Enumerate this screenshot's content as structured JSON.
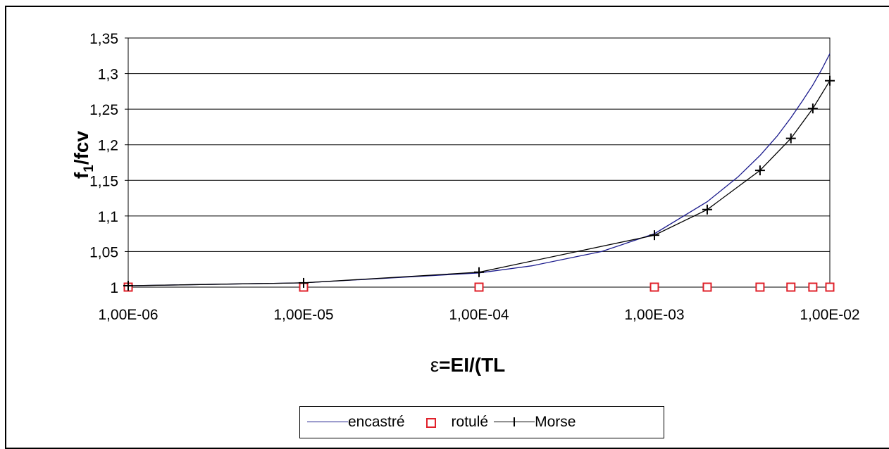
{
  "chart_data": {
    "type": "line",
    "xscale": "log",
    "xlim": [
      1e-06,
      0.01
    ],
    "ylim": [
      1,
      1.35
    ],
    "ylabel": "f1/fcv",
    "ylabel_main": "f",
    "ylabel_sub": "1",
    "ylabel_rest": "/fcv",
    "xlabel": "ε=EI/(TL",
    "xlabel_symbol": "ε",
    "xlabel_rest": "=EI/(TL",
    "x_ticks": [
      1e-06,
      1e-05,
      0.0001,
      0.001,
      0.01
    ],
    "x_tick_labels": [
      "1,00E-06",
      "1,00E-05",
      "1,00E-04",
      "1,00E-03",
      "1,00E-02"
    ],
    "y_ticks": [
      1,
      1.05,
      1.1,
      1.15,
      1.2,
      1.25,
      1.3,
      1.35
    ],
    "y_tick_labels": [
      "1",
      "1,05",
      "1,1",
      "1,15",
      "1,2",
      "1,25",
      "1,3",
      "1,35"
    ],
    "grid": "horizontal",
    "legend_position": "bottom",
    "series": [
      {
        "name": "encastré",
        "style": "line",
        "color": "#1a1a8c",
        "x": [
          1e-06,
          1e-05,
          0.0001,
          0.0002,
          0.0005,
          0.001,
          0.002,
          0.003,
          0.004,
          0.005,
          0.006,
          0.007,
          0.008,
          0.009,
          0.01
        ],
        "values": [
          1.002,
          1.006,
          1.02,
          1.03,
          1.05,
          1.075,
          1.12,
          1.155,
          1.185,
          1.212,
          1.238,
          1.262,
          1.284,
          1.306,
          1.328
        ]
      },
      {
        "name": "rotulé",
        "style": "square-markers",
        "color": "#e0202a",
        "x": [
          1e-06,
          1e-05,
          0.0001,
          0.001,
          0.002,
          0.004,
          0.006,
          0.008,
          0.01
        ],
        "values": [
          1,
          1,
          1,
          1,
          1,
          1,
          1,
          1,
          1
        ]
      },
      {
        "name": "Morse",
        "style": "line-plus",
        "color": "#000000",
        "x": [
          1e-06,
          1e-05,
          0.0001,
          0.001,
          0.002,
          0.004,
          0.006,
          0.008,
          0.01
        ],
        "values": [
          1.002,
          1.006,
          1.021,
          1.073,
          1.109,
          1.164,
          1.209,
          1.251,
          1.29
        ]
      }
    ]
  }
}
